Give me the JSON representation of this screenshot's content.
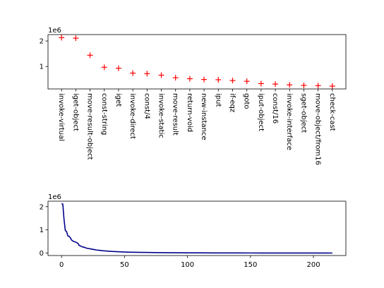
{
  "chart_data": [
    {
      "type": "scatter",
      "marker": "+",
      "color": "#ff0000",
      "categories": [
        "invoke-virtual",
        "iget-object",
        "move-result-object",
        "const-string",
        "iget",
        "invoke-direct",
        "const/4",
        "invoke-static",
        "move-result",
        "return-void",
        "new-instance",
        "iput",
        "if-eqz",
        "goto",
        "iput-object",
        "const/16",
        "invoke-interface",
        "sget-object",
        "move-object/from16",
        "check-cast"
      ],
      "values": [
        2130000,
        2110000,
        1440000,
        970000,
        930000,
        740000,
        720000,
        660000,
        560000,
        520000,
        490000,
        480000,
        450000,
        420000,
        330000,
        310000,
        280000,
        260000,
        250000,
        230000
      ],
      "ylim": [
        120000,
        2250000
      ],
      "yticks": [
        1000000,
        2000000
      ],
      "ytick_labels": [
        "1",
        "2"
      ],
      "offset_label": "1e6",
      "grid": false
    },
    {
      "type": "line",
      "color": "#00008b",
      "x": [
        0,
        1,
        2,
        3,
        4,
        5,
        6,
        7,
        8,
        9,
        10,
        11,
        12,
        13,
        14,
        15,
        16,
        17,
        18,
        19,
        20,
        22,
        24,
        26,
        28,
        30,
        32,
        34,
        36,
        38,
        40,
        43,
        46,
        50,
        55,
        60,
        70,
        80,
        90,
        100,
        110,
        120,
        130,
        140,
        150,
        160,
        170,
        180,
        190,
        200,
        210,
        215
      ],
      "y": [
        2130000,
        2110000,
        1440000,
        970000,
        930000,
        740000,
        720000,
        660000,
        560000,
        520000,
        490000,
        480000,
        450000,
        420000,
        330000,
        310000,
        280000,
        260000,
        250000,
        230000,
        210000,
        190000,
        170000,
        150000,
        130000,
        120000,
        105000,
        95000,
        85000,
        78000,
        70000,
        62000,
        55000,
        45000,
        38000,
        32000,
        24000,
        18000,
        14000,
        11000,
        9000,
        7000,
        6000,
        5000,
        4000,
        3500,
        3000,
        2500,
        2000,
        1500,
        1000,
        800
      ],
      "xlim": [
        -10.75,
        225.75
      ],
      "ylim": [
        -106000,
        2236000
      ],
      "xticks": [
        0,
        50,
        100,
        150,
        200
      ],
      "xtick_labels": [
        "0",
        "50",
        "100",
        "150",
        "200"
      ],
      "yticks": [
        0,
        1000000,
        2000000
      ],
      "ytick_labels": [
        "0",
        "1",
        "2"
      ],
      "offset_label": "1e6",
      "grid": false
    }
  ]
}
